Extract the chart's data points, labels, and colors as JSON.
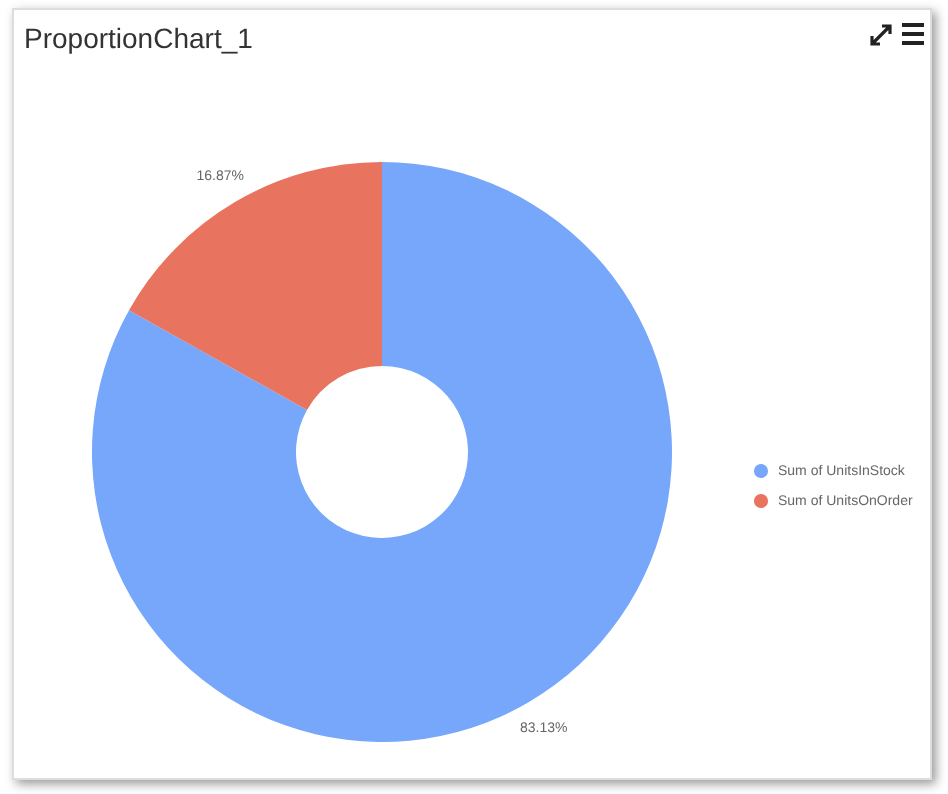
{
  "chart_data": {
    "type": "donut",
    "title": "ProportionChart_1",
    "categories": [
      "Sum of UnitsInStock",
      "Sum of UnitsOnOrder"
    ],
    "values": [
      83.13,
      16.87
    ],
    "colors": [
      "#76a7fa",
      "#e8735f"
    ],
    "value_labels": [
      "83.13%",
      "16.87%"
    ],
    "legend": "right"
  }
}
